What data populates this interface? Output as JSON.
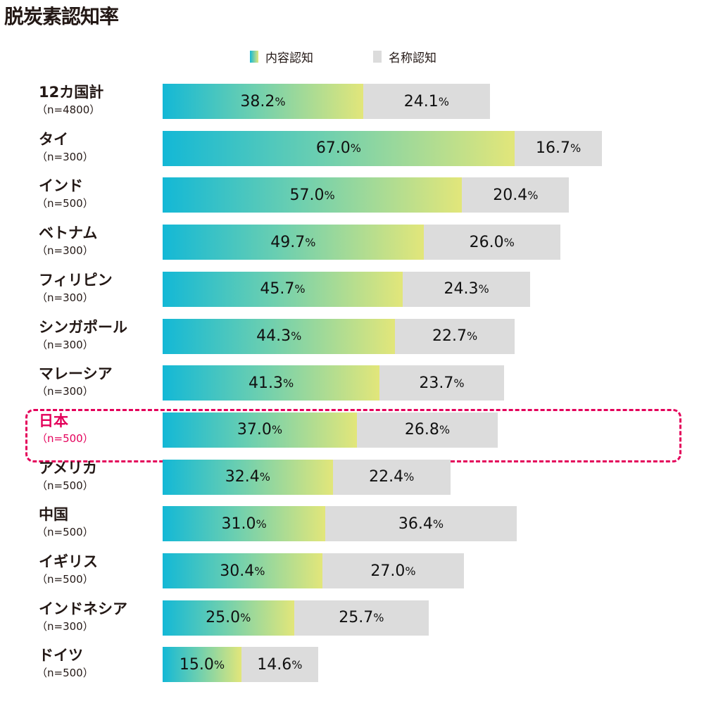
{
  "chart_data": {
    "type": "bar",
    "stacked": true,
    "orientation": "horizontal",
    "title": "脱炭素認知率",
    "unit": "%",
    "legend_position": "top",
    "colors": {
      "content": "gradient #13b8d6→#e2e67a",
      "name": "#dcdcdc",
      "highlight": "#e4005a"
    },
    "series": [
      {
        "name": "内容認知"
      },
      {
        "name": "名称認知"
      }
    ],
    "categories": [
      {
        "name": "12カ国計",
        "n": "（n=4800）",
        "values": [
          38.2,
          24.1
        ]
      },
      {
        "name": "タイ",
        "n": "（n=300）",
        "values": [
          67.0,
          16.7
        ]
      },
      {
        "name": "インド",
        "n": "（n=500）",
        "values": [
          57.0,
          20.4
        ]
      },
      {
        "name": "ベトナム",
        "n": "（n=300）",
        "values": [
          49.7,
          26.0
        ]
      },
      {
        "name": "フィリピン",
        "n": "（n=300）",
        "values": [
          45.7,
          24.3
        ]
      },
      {
        "name": "シンガポール",
        "n": "（n=300）",
        "values": [
          44.3,
          22.7
        ]
      },
      {
        "name": "マレーシア",
        "n": "（n=300）",
        "values": [
          41.3,
          23.7
        ]
      },
      {
        "name": "日本",
        "n": "（n=500）",
        "values": [
          37.0,
          26.8
        ],
        "highlight": true
      },
      {
        "name": "アメリカ",
        "n": "（n=500）",
        "values": [
          32.4,
          22.4
        ]
      },
      {
        "name": "中国",
        "n": "（n=500）",
        "values": [
          31.0,
          36.4
        ]
      },
      {
        "name": "イギリス",
        "n": "（n=500）",
        "values": [
          30.4,
          27.0
        ]
      },
      {
        "name": "インドネシア",
        "n": "（n=300）",
        "values": [
          25.0,
          25.7
        ]
      },
      {
        "name": "ドイツ",
        "n": "（n=500）",
        "values": [
          15.0,
          14.6
        ]
      }
    ]
  }
}
